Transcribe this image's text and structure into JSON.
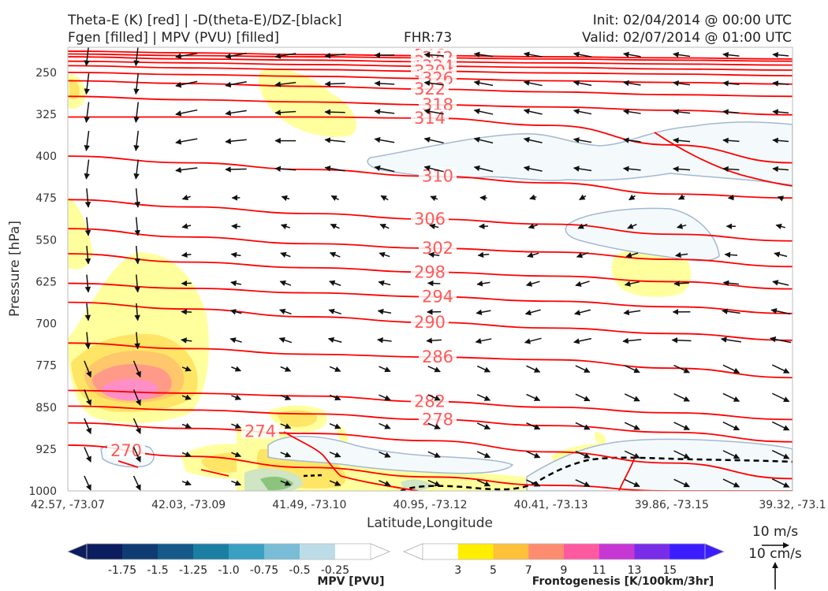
{
  "header": {
    "title_left_1": "Theta-E (K) [red] | -D(theta-E)/DZ-[black]",
    "title_left_2": "Fgen [filled] | MPV (PVU) [filled]",
    "title_center": "FHR:73",
    "title_right_1": "Init: 02/04/2014 @ 00:00 UTC",
    "title_right_2": "Valid: 02/07/2014 @ 01:00 UTC"
  },
  "chart_data": {
    "type": "cross-section",
    "xlabel": "Latitude,Longitude",
    "ylabel": "Pressure [hPa]",
    "x_ticks": [
      "42.57, -73.07",
      "42.03, -73.09",
      "41.49, -73.10",
      "40.95, -73.12",
      "40.41, -73.13",
      "39.86, -73.15",
      "39.32, -73.1"
    ],
    "y_ticks": [
      250,
      325,
      400,
      475,
      550,
      625,
      700,
      775,
      850,
      925,
      1000
    ],
    "ylim": [
      1000,
      205
    ],
    "theta_e_contours": [
      {
        "label": "346",
        "y": [
          212,
          215,
          218,
          220,
          222,
          224,
          226
        ]
      },
      {
        "label": "342",
        "y": [
          217,
          220,
          222,
          224,
          226,
          228,
          230
        ]
      },
      {
        "label": "338",
        "y": [
          222,
          226,
          228,
          231,
          233,
          235,
          237
        ]
      },
      {
        "label": "334",
        "y": [
          230,
          233,
          236,
          239,
          241,
          244,
          246
        ]
      },
      {
        "label": "330",
        "y": [
          238,
          242,
          245,
          248,
          251,
          253,
          256
        ]
      },
      {
        "label": "326",
        "y": [
          250,
          254,
          257,
          261,
          265,
          268,
          271
        ]
      },
      {
        "label": "322",
        "y": [
          265,
          270,
          275,
          280,
          285,
          290,
          293
        ]
      },
      {
        "label": "318",
        "y": [
          293,
          299,
          303,
          308,
          312,
          318,
          326
        ]
      },
      {
        "label": "314",
        "y": [
          330,
          330,
          330,
          332,
          345,
          380,
          412
        ]
      },
      {
        "label": "310",
        "y": [
          400,
          412,
          424,
          436,
          448,
          468,
          475
        ]
      },
      {
        "label": "306",
        "y": [
          478,
          491,
          503,
          513,
          522,
          540,
          552
        ]
      },
      {
        "label": "302",
        "y": [
          530,
          545,
          557,
          565,
          572,
          585,
          598
        ]
      },
      {
        "label": "298",
        "y": [
          575,
          590,
          600,
          608,
          615,
          625,
          638
        ]
      },
      {
        "label": "294",
        "y": [
          628,
          637,
          645,
          652,
          660,
          670,
          682
        ]
      },
      {
        "label": "290",
        "y": [
          662,
          674,
          688,
          698,
          708,
          718,
          730
        ]
      },
      {
        "label": "286",
        "y": [
          735,
          745,
          755,
          760,
          765,
          780,
          797
        ]
      },
      {
        "label": "282",
        "y": [
          820,
          825,
          830,
          840,
          850,
          860,
          872
        ]
      },
      {
        "label": "278",
        "y": [
          848,
          855,
          862,
          872,
          883,
          895,
          912
        ]
      },
      {
        "label": "274",
        "y": [
          878,
          888,
          897,
          910,
          930,
          950,
          978
        ]
      },
      {
        "label": "270",
        "y": [
          918,
          938,
          958,
          975,
          990,
          1000,
          1000
        ]
      }
    ],
    "colorbar_mpv": {
      "label": "MPV [PVU]",
      "ticks": [
        "-1.75",
        "-1.5",
        "-1.25",
        "-1.0",
        "-0.75",
        "-0.5",
        "-0.25"
      ],
      "colors": [
        "#0b1d5e",
        "#0f3b73",
        "#14598a",
        "#1b7ea3",
        "#3aa0c2",
        "#79bcd6",
        "#bcdde8",
        "#ffffff"
      ]
    },
    "colorbar_fgen": {
      "label": "Frontogenesis [K/100km/3hr]",
      "ticks": [
        "3",
        "5",
        "7",
        "9",
        "11",
        "13",
        "15"
      ],
      "colors": [
        "#ffffff",
        "#ffee00",
        "#ffc03a",
        "#ff8c6e",
        "#ff5aa0",
        "#c637d4",
        "#7a2de8",
        "#3c1dff"
      ]
    },
    "vector_keys": [
      "10 m/s",
      "10 cm/s"
    ]
  }
}
